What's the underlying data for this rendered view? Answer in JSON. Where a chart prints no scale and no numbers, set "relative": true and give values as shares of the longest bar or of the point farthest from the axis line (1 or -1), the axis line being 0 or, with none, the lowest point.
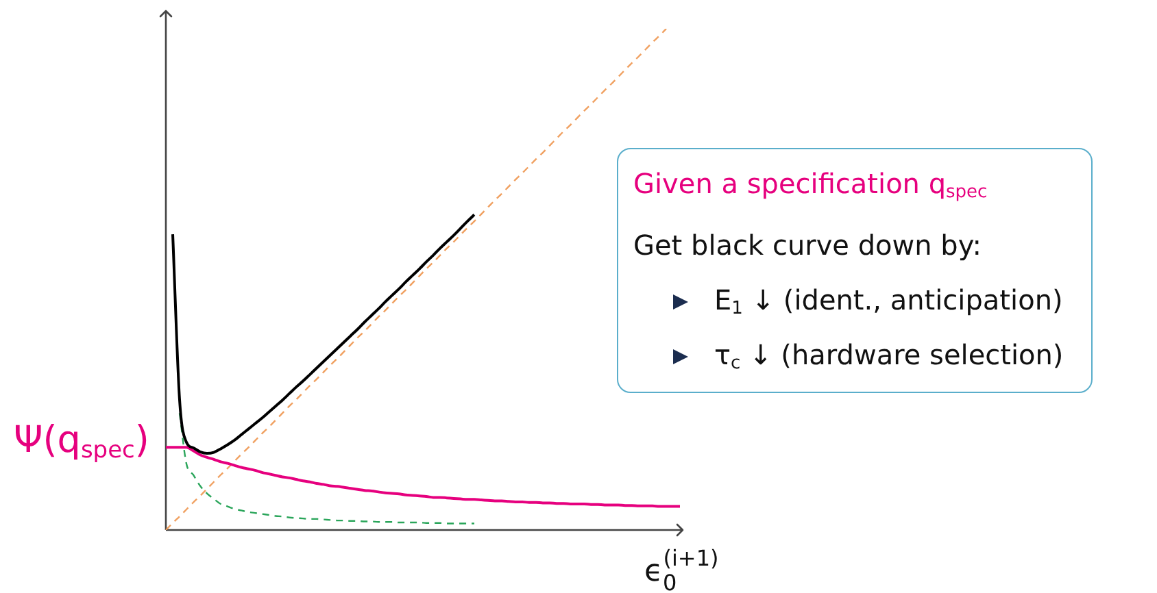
{
  "chart_data": {
    "type": "line",
    "relative": true,
    "xlabel": "ϵ$_{0}$$^{(i+1)}$",
    "categories": [
      null,
      null,
      null,
      null,
      null,
      null,
      null,
      null,
      null,
      null,
      null,
      null,
      null,
      null,
      null,
      null,
      null,
      null,
      null,
      null,
      null,
      null,
      null,
      null,
      null,
      null,
      null,
      null,
      null,
      null,
      null,
      null,
      null,
      null,
      null,
      null,
      null,
      null,
      null,
      null,
      null,
      null,
      null,
      null,
      null,
      null,
      null,
      null,
      null,
      null,
      null,
      null,
      null,
      null,
      null,
      null,
      null,
      null,
      null,
      null,
      null,
      null,
      null,
      null,
      null,
      null,
      null,
      null,
      null,
      null,
      null,
      null,
      null,
      null,
      null,
      null
    ],
    "series": [
      {
        "color": "#000000",
        "values": [
          null,
          0.59,
          0.26,
          0.175,
          0.164,
          0.156,
          0.153,
          0.155,
          0.162,
          0.17,
          0.179,
          0.19,
          0.201,
          0.212,
          0.223,
          0.235,
          0.247,
          0.259,
          0.272,
          0.285,
          0.297,
          0.31,
          0.323,
          0.336,
          0.349,
          0.362,
          0.375,
          0.388,
          0.401,
          0.415,
          0.428,
          0.441,
          0.455,
          0.468,
          0.481,
          0.495,
          0.508,
          0.521,
          0.535,
          0.548,
          0.562,
          0.575,
          0.588,
          0.602,
          0.616,
          0.629,
          null,
          null,
          null,
          null,
          null,
          null,
          null,
          null,
          null,
          null,
          null,
          null,
          null,
          null,
          null,
          null,
          null,
          null,
          null,
          null,
          null,
          null,
          null,
          null,
          null,
          null,
          null,
          null,
          null,
          null
        ]
      },
      {
        "color": "#e6007e",
        "values": [
          0.165,
          0.165,
          0.165,
          0.165,
          0.158,
          0.15,
          0.145,
          0.141,
          0.136,
          0.133,
          0.129,
          0.125,
          0.122,
          0.119,
          0.115,
          0.112,
          0.109,
          0.106,
          0.104,
          0.101,
          0.098,
          0.096,
          0.093,
          0.091,
          0.088,
          0.087,
          0.085,
          0.083,
          0.081,
          0.079,
          0.078,
          0.076,
          0.074,
          0.073,
          0.072,
          0.07,
          0.069,
          0.068,
          0.067,
          0.065,
          0.065,
          0.064,
          0.063,
          0.062,
          0.061,
          0.061,
          0.06,
          0.059,
          0.058,
          0.058,
          0.057,
          0.056,
          0.056,
          0.055,
          0.055,
          0.054,
          0.054,
          0.053,
          0.053,
          0.052,
          0.052,
          0.052,
          0.051,
          0.051,
          0.05,
          0.05,
          0.05,
          0.049,
          0.049,
          0.048,
          0.048,
          0.048,
          0.047,
          0.047,
          0.047,
          0.047
        ]
      },
      {
        "color": "#2aa55a",
        "line_style": "dashed",
        "values": [
          null,
          null,
          0.233,
          0.132,
          0.11,
          0.088,
          0.073,
          0.062,
          0.052,
          0.047,
          0.042,
          0.039,
          0.036,
          0.034,
          0.032,
          0.03,
          0.028,
          0.027,
          0.025,
          0.024,
          0.023,
          0.022,
          0.022,
          0.021,
          0.02,
          0.019,
          0.019,
          0.018,
          0.018,
          0.017,
          0.017,
          0.016,
          0.016,
          0.016,
          0.015,
          0.015,
          0.015,
          0.015,
          0.014,
          0.014,
          0.014,
          0.013,
          0.013,
          0.013,
          0.013,
          0.013,
          null,
          null,
          null,
          null,
          null,
          null,
          null,
          null,
          null,
          null,
          null,
          null,
          null,
          null,
          null,
          null,
          null,
          null,
          null,
          null,
          null,
          null,
          null,
          null,
          null,
          null,
          null,
          null,
          null,
          null
        ]
      },
      {
        "color": "#f0a060",
        "line_style": "dashed",
        "values": [
          0,
          0.014,
          0.027,
          0.041,
          0.055,
          0.068,
          0.082,
          0.096,
          0.11,
          0.123,
          0.137,
          0.151,
          0.164,
          0.178,
          0.192,
          0.205,
          0.219,
          0.233,
          0.247,
          0.26,
          0.274,
          0.288,
          0.301,
          0.315,
          0.329,
          0.342,
          0.356,
          0.37,
          0.384,
          0.397,
          0.411,
          0.425,
          0.438,
          0.452,
          0.466,
          0.479,
          0.493,
          0.507,
          0.521,
          0.534,
          0.548,
          0.562,
          0.575,
          0.589,
          0.603,
          0.616,
          0.63,
          0.644,
          0.658,
          0.671,
          0.685,
          0.699,
          0.712,
          0.726,
          0.74,
          0.753,
          0.767,
          0.781,
          0.795,
          0.808,
          0.822,
          0.836,
          0.849,
          0.863,
          0.877,
          0.89,
          0.904,
          0.918,
          0.932,
          0.945,
          0.959,
          0.973,
          0.986,
          1,
          null,
          null
        ]
      }
    ],
    "annotations": [
      "Ψ(q$_{spec}$)",
      "Given a specification q$_{spec}$",
      "Get black curve down by:",
      "E$_{1}$ ↓ (ident., anticipation)",
      "τ$_{c}$ ↓ (hardware selection)"
    ]
  }
}
